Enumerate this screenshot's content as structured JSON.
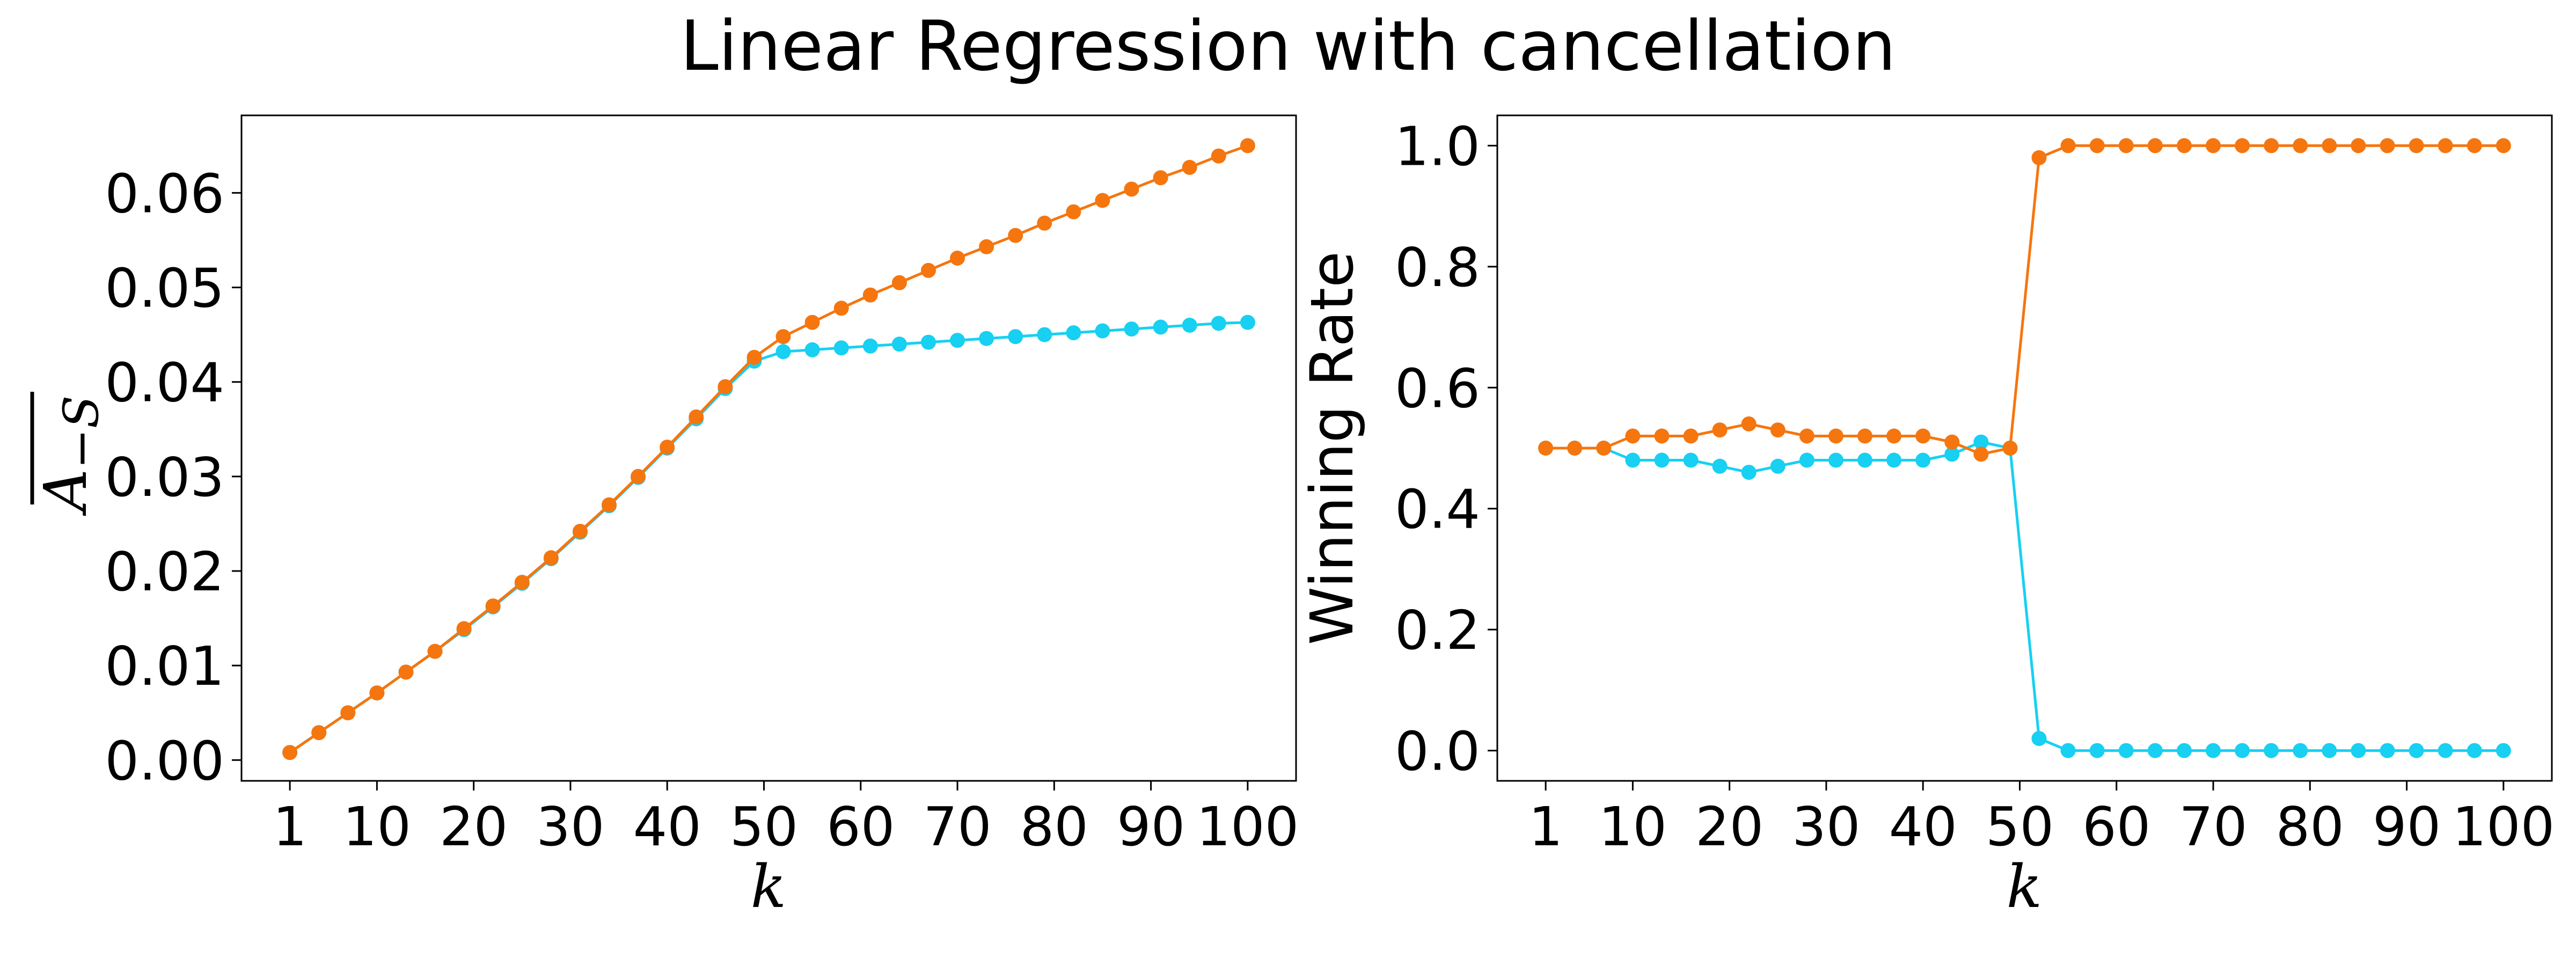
{
  "title": "Linear Regression with cancellation",
  "colors": {
    "cyan": "#17d0f2",
    "orange": "#f5760f",
    "axes": "#000000"
  },
  "chart_data": [
    {
      "type": "line",
      "xlabel": "k",
      "ylabel_main": "A",
      "ylabel_sub": "−S",
      "xticks": [
        1,
        10,
        20,
        30,
        40,
        50,
        60,
        70,
        80,
        90,
        100
      ],
      "yticks": [
        "0.00",
        "0.01",
        "0.02",
        "0.03",
        "0.04",
        "0.05",
        "0.06"
      ],
      "xlim": [
        -4,
        105
      ],
      "ylim": [
        -0.0022,
        0.0682
      ],
      "grid": false,
      "x": [
        1,
        4,
        7,
        10,
        13,
        16,
        19,
        22,
        25,
        28,
        31,
        34,
        37,
        40,
        43,
        46,
        49,
        52,
        55,
        58,
        61,
        64,
        67,
        70,
        73,
        76,
        79,
        82,
        85,
        88,
        91,
        94,
        97,
        100
      ],
      "series": [
        {
          "color": "#17d0f2",
          "values": [
            0.0008,
            0.0029,
            0.005,
            0.0071,
            0.0093,
            0.0115,
            0.0138,
            0.0162,
            0.0187,
            0.0213,
            0.0241,
            0.0269,
            0.0299,
            0.033,
            0.0361,
            0.0393,
            0.0422,
            0.0432,
            0.0434,
            0.0436,
            0.0438,
            0.044,
            0.0442,
            0.0444,
            0.0446,
            0.0448,
            0.045,
            0.0452,
            0.0454,
            0.0456,
            0.0458,
            0.046,
            0.0462,
            0.0463
          ]
        },
        {
          "color": "#f5760f",
          "values": [
            0.0008,
            0.0029,
            0.005,
            0.0071,
            0.0093,
            0.0115,
            0.0139,
            0.0163,
            0.0188,
            0.0214,
            0.0242,
            0.027,
            0.03,
            0.0331,
            0.0363,
            0.0395,
            0.0426,
            0.0448,
            0.0463,
            0.0478,
            0.0492,
            0.0505,
            0.0518,
            0.0531,
            0.0543,
            0.0555,
            0.0568,
            0.058,
            0.0592,
            0.0604,
            0.0616,
            0.0627,
            0.0639,
            0.065
          ]
        }
      ]
    },
    {
      "type": "line",
      "xlabel": "k",
      "ylabel": "Winning Rate",
      "xticks": [
        1,
        10,
        20,
        30,
        40,
        50,
        60,
        70,
        80,
        90,
        100
      ],
      "yticks": [
        "0.0",
        "0.2",
        "0.4",
        "0.6",
        "0.8",
        "1.0"
      ],
      "xlim": [
        -4,
        105
      ],
      "ylim": [
        -0.05,
        1.05
      ],
      "grid": false,
      "x": [
        1,
        4,
        7,
        10,
        13,
        16,
        19,
        22,
        25,
        28,
        31,
        34,
        37,
        40,
        43,
        46,
        49,
        52,
        55,
        58,
        61,
        64,
        67,
        70,
        73,
        76,
        79,
        82,
        85,
        88,
        91,
        94,
        97,
        100
      ],
      "series": [
        {
          "color": "#17d0f2",
          "values": [
            0.5,
            0.5,
            0.5,
            0.48,
            0.48,
            0.48,
            0.47,
            0.46,
            0.47,
            0.48,
            0.48,
            0.48,
            0.48,
            0.48,
            0.49,
            0.51,
            0.5,
            0.02,
            0.0,
            0.0,
            0.0,
            0.0,
            0.0,
            0.0,
            0.0,
            0.0,
            0.0,
            0.0,
            0.0,
            0.0,
            0.0,
            0.0,
            0.0,
            0.0
          ]
        },
        {
          "color": "#f5760f",
          "values": [
            0.5,
            0.5,
            0.5,
            0.52,
            0.52,
            0.52,
            0.53,
            0.54,
            0.53,
            0.52,
            0.52,
            0.52,
            0.52,
            0.52,
            0.51,
            0.49,
            0.5,
            0.98,
            1.0,
            1.0,
            1.0,
            1.0,
            1.0,
            1.0,
            1.0,
            1.0,
            1.0,
            1.0,
            1.0,
            1.0,
            1.0,
            1.0,
            1.0,
            1.0
          ]
        }
      ]
    }
  ]
}
